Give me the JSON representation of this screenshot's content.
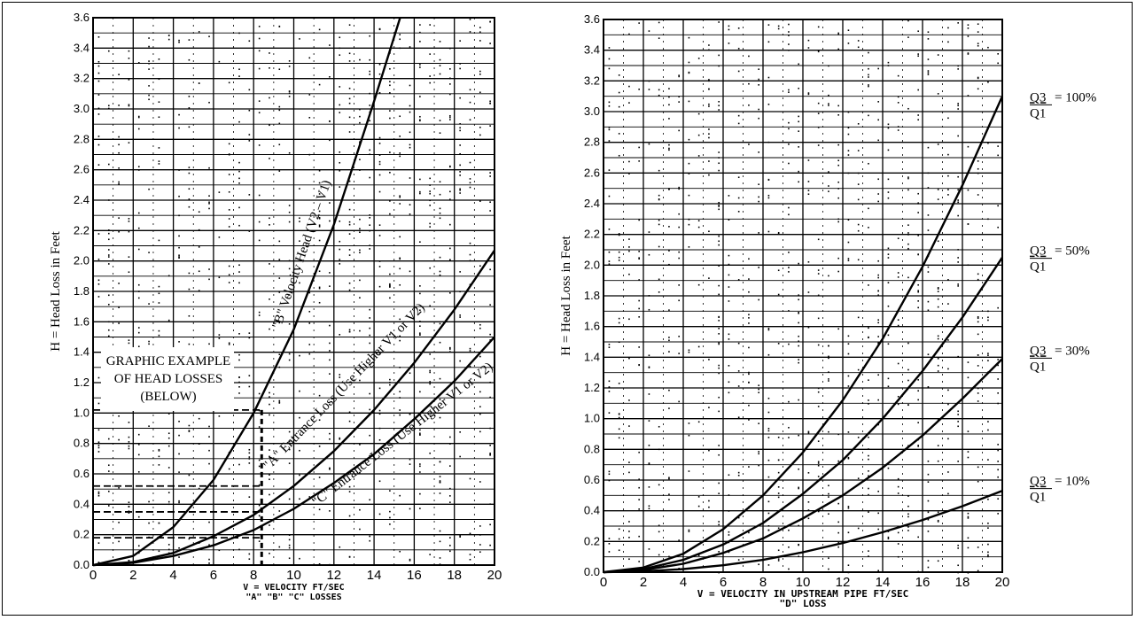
{
  "chart_data": [
    {
      "type": "line",
      "ylabel": "H = Head Loss in Feet",
      "xlabel": "V = VELOCITY FT/SEC",
      "xlabel_line2": "\"A\" \"B\" \"C\" LOSSES",
      "xlim": [
        0,
        20
      ],
      "ylim": [
        0.0,
        3.6
      ],
      "x_ticks": [
        "0",
        "2",
        "4",
        "6",
        "8",
        "10",
        "12",
        "14",
        "16",
        "18",
        "20"
      ],
      "y_ticks": [
        "0.0",
        "0.2",
        "0.4",
        "0.6",
        "0.8",
        "1.0",
        "1.2",
        "1.4",
        "1.6",
        "1.8",
        "2.0",
        "2.2",
        "2.4",
        "2.6",
        "2.8",
        "3.0",
        "3.2",
        "3.4",
        "3.6"
      ],
      "grid": true,
      "series": [
        {
          "name": "\"B\" Velocity Head (V2 – V1)",
          "x": [
            0,
            2,
            4,
            6,
            8,
            10,
            12,
            14,
            15.3
          ],
          "y": [
            0.0,
            0.06,
            0.25,
            0.56,
            1.0,
            1.55,
            2.24,
            3.05,
            3.6
          ]
        },
        {
          "name": "\"A\" Entrance Loss (Use Higher V1 or V2)",
          "x": [
            0,
            2,
            4,
            6,
            8,
            10,
            12,
            14,
            16,
            18,
            20
          ],
          "y": [
            0.0,
            0.02,
            0.08,
            0.19,
            0.33,
            0.52,
            0.75,
            1.02,
            1.33,
            1.68,
            2.07
          ]
        },
        {
          "name": "\"C\" Entrance Loss (Use Higher V1 or V2)",
          "x": [
            0,
            2,
            4,
            6,
            8,
            10,
            12,
            14,
            16,
            18,
            20
          ],
          "y": [
            0.0,
            0.015,
            0.06,
            0.13,
            0.23,
            0.37,
            0.54,
            0.73,
            0.96,
            1.21,
            1.5
          ]
        }
      ],
      "annotation": {
        "lines": [
          "GRAPHIC EXAMPLE",
          "OF HEAD LOSSES",
          "(BELOW)"
        ],
        "v_line_x": 8.4,
        "h_levels": [
          1.02,
          0.52,
          0.35,
          0.18
        ],
        "h_levels_start_x": 0
      }
    },
    {
      "type": "line",
      "ylabel": "H = Head Loss in Feet",
      "xlabel": "V = VELOCITY IN UPSTREAM PIPE FT/SEC",
      "xlabel_line2": "\"D\" LOSS",
      "xlim": [
        0,
        20
      ],
      "ylim": [
        0.0,
        3.6
      ],
      "x_ticks": [
        "0",
        "2",
        "4",
        "6",
        "8",
        "10",
        "12",
        "14",
        "16",
        "18",
        "20"
      ],
      "y_ticks": [
        "0.0",
        "0.2",
        "0.4",
        "0.6",
        "0.8",
        "1.0",
        "1.2",
        "1.4",
        "1.6",
        "1.8",
        "2.0",
        "2.2",
        "2.4",
        "2.6",
        "2.8",
        "3.0",
        "3.2",
        "3.4",
        "3.6"
      ],
      "grid": true,
      "series": [
        {
          "name": "Q3/Q1 = 100%",
          "x": [
            0,
            2,
            4,
            6,
            8,
            10,
            12,
            14,
            16,
            18,
            20
          ],
          "y": [
            0.0,
            0.03,
            0.12,
            0.28,
            0.5,
            0.78,
            1.12,
            1.52,
            1.99,
            2.52,
            3.1
          ]
        },
        {
          "name": "Q3/Q1 = 50%",
          "x": [
            0,
            2,
            4,
            6,
            8,
            10,
            12,
            14,
            16,
            18,
            20
          ],
          "y": [
            0.0,
            0.02,
            0.08,
            0.18,
            0.32,
            0.51,
            0.73,
            1.0,
            1.31,
            1.66,
            2.05
          ]
        },
        {
          "name": "Q3/Q1 = 30%",
          "x": [
            0,
            2,
            4,
            6,
            8,
            10,
            12,
            14,
            16,
            18,
            20
          ],
          "y": [
            0.0,
            0.014,
            0.055,
            0.125,
            0.22,
            0.35,
            0.5,
            0.68,
            0.89,
            1.13,
            1.39
          ]
        },
        {
          "name": "Q3/Q1 = 10%",
          "x": [
            0,
            2,
            4,
            6,
            8,
            10,
            12,
            14,
            16,
            18,
            20
          ],
          "y": [
            0.0,
            0.005,
            0.02,
            0.045,
            0.08,
            0.13,
            0.19,
            0.26,
            0.34,
            0.43,
            0.53
          ]
        }
      ],
      "ratio_labels": [
        {
          "num": "Q3",
          "den": "Q1",
          "value": "= 100%",
          "y": 3.05
        },
        {
          "num": "Q3",
          "den": "Q1",
          "value": "= 50%",
          "y": 2.05
        },
        {
          "num": "Q3",
          "den": "Q1",
          "value": "= 30%",
          "y": 1.4
        },
        {
          "num": "Q3",
          "den": "Q1",
          "value": "= 10%",
          "y": 0.55
        }
      ]
    }
  ]
}
